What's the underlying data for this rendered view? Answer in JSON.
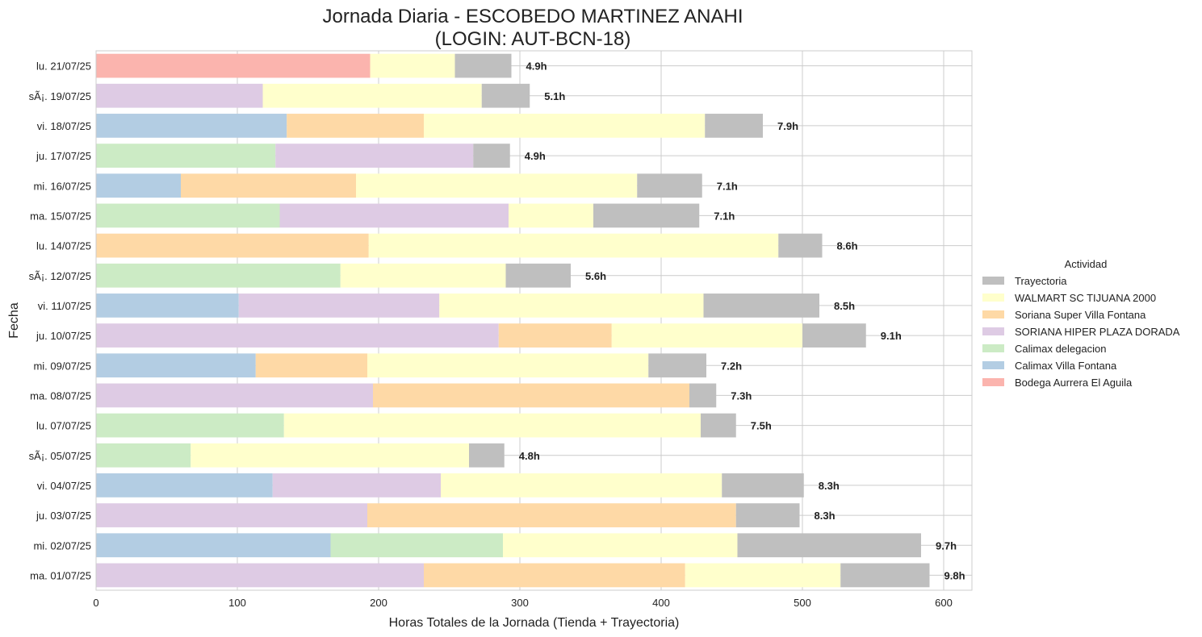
{
  "chart_data": {
    "type": "bar",
    "orientation": "horizontal",
    "stacked": true,
    "title": "Jornada Diaria - ESCOBEDO MARTINEZ ANAHI",
    "subtitle": "(LOGIN: AUT-BCN-18)",
    "xlabel": "Horas Totales de la Jornada (Tienda + Trayectoria)",
    "ylabel": "Fecha",
    "xlim": [
      0,
      620
    ],
    "xticks": [
      0,
      100,
      200,
      300,
      400,
      500,
      600
    ],
    "grid": true,
    "legend_title": "Actividad",
    "legend_position": "right",
    "categories": [
      "lu. 21/07/25",
      "sÃ¡. 19/07/25",
      "vi. 18/07/25",
      "ju. 17/07/25",
      "mi. 16/07/25",
      "ma. 15/07/25",
      "lu. 14/07/25",
      "sÃ¡. 12/07/25",
      "vi. 11/07/25",
      "ju. 10/07/25",
      "mi. 09/07/25",
      "ma. 08/07/25",
      "lu. 07/07/25",
      "sÃ¡. 05/07/25",
      "vi. 04/07/25",
      "ju. 03/07/25",
      "mi. 02/07/25",
      "ma. 01/07/25"
    ],
    "total_labels": [
      "4.9h",
      "5.1h",
      "7.9h",
      "4.9h",
      "7.1h",
      "7.1h",
      "8.6h",
      "5.6h",
      "8.5h",
      "9.1h",
      "7.2h",
      "7.3h",
      "7.5h",
      "4.8h",
      "8.3h",
      "8.3h",
      "9.7h",
      "9.8h"
    ],
    "rows": [
      [
        {
          "name": "Bodega Aurrera El Aguila",
          "value": 194
        },
        {
          "name": "WALMART SC TIJUANA 2000",
          "value": 60
        },
        {
          "name": "Trayectoria",
          "value": 40
        }
      ],
      [
        {
          "name": "SORIANA HIPER PLAZA DORADA",
          "value": 118
        },
        {
          "name": "WALMART SC TIJUANA 2000",
          "value": 155
        },
        {
          "name": "Trayectoria",
          "value": 34
        }
      ],
      [
        {
          "name": "Calimax Villa Fontana",
          "value": 135
        },
        {
          "name": "Soriana Super Villa Fontana",
          "value": 97
        },
        {
          "name": "WALMART SC TIJUANA 2000",
          "value": 199
        },
        {
          "name": "Trayectoria",
          "value": 41
        }
      ],
      [
        {
          "name": "Calimax delegacion",
          "value": 127
        },
        {
          "name": "SORIANA HIPER PLAZA DORADA",
          "value": 140
        },
        {
          "name": "Trayectoria",
          "value": 26
        }
      ],
      [
        {
          "name": "Calimax Villa Fontana",
          "value": 60
        },
        {
          "name": "Soriana Super Villa Fontana",
          "value": 124
        },
        {
          "name": "WALMART SC TIJUANA 2000",
          "value": 199
        },
        {
          "name": "Trayectoria",
          "value": 46
        }
      ],
      [
        {
          "name": "Calimax delegacion",
          "value": 130
        },
        {
          "name": "SORIANA HIPER PLAZA DORADA",
          "value": 162
        },
        {
          "name": "WALMART SC TIJUANA 2000",
          "value": 60
        },
        {
          "name": "Trayectoria",
          "value": 75
        }
      ],
      [
        {
          "name": "Soriana Super Villa Fontana",
          "value": 193
        },
        {
          "name": "WALMART SC TIJUANA 2000",
          "value": 290
        },
        {
          "name": "Trayectoria",
          "value": 31
        }
      ],
      [
        {
          "name": "Calimax delegacion",
          "value": 173
        },
        {
          "name": "WALMART SC TIJUANA 2000",
          "value": 117
        },
        {
          "name": "Trayectoria",
          "value": 46
        }
      ],
      [
        {
          "name": "Calimax Villa Fontana",
          "value": 101
        },
        {
          "name": "SORIANA HIPER PLAZA DORADA",
          "value": 142
        },
        {
          "name": "WALMART SC TIJUANA 2000",
          "value": 187
        },
        {
          "name": "Trayectoria",
          "value": 82
        }
      ],
      [
        {
          "name": "SORIANA HIPER PLAZA DORADA",
          "value": 285
        },
        {
          "name": "Soriana Super Villa Fontana",
          "value": 80
        },
        {
          "name": "WALMART SC TIJUANA 2000",
          "value": 135
        },
        {
          "name": "Trayectoria",
          "value": 45
        }
      ],
      [
        {
          "name": "Calimax Villa Fontana",
          "value": 113
        },
        {
          "name": "Soriana Super Villa Fontana",
          "value": 79
        },
        {
          "name": "WALMART SC TIJUANA 2000",
          "value": 199
        },
        {
          "name": "Trayectoria",
          "value": 41
        }
      ],
      [
        {
          "name": "SORIANA HIPER PLAZA DORADA",
          "value": 196
        },
        {
          "name": "Soriana Super Villa Fontana",
          "value": 224
        },
        {
          "name": "Trayectoria",
          "value": 19
        }
      ],
      [
        {
          "name": "Calimax delegacion",
          "value": 133
        },
        {
          "name": "WALMART SC TIJUANA 2000",
          "value": 295
        },
        {
          "name": "Trayectoria",
          "value": 25
        }
      ],
      [
        {
          "name": "Calimax delegacion",
          "value": 67
        },
        {
          "name": "WALMART SC TIJUANA 2000",
          "value": 197
        },
        {
          "name": "Trayectoria",
          "value": 25
        }
      ],
      [
        {
          "name": "Calimax Villa Fontana",
          "value": 125
        },
        {
          "name": "SORIANA HIPER PLAZA DORADA",
          "value": 119
        },
        {
          "name": "WALMART SC TIJUANA 2000",
          "value": 199
        },
        {
          "name": "Trayectoria",
          "value": 58
        }
      ],
      [
        {
          "name": "SORIANA HIPER PLAZA DORADA",
          "value": 192
        },
        {
          "name": "Soriana Super Villa Fontana",
          "value": 261
        },
        {
          "name": "Trayectoria",
          "value": 45
        }
      ],
      [
        {
          "name": "Calimax Villa Fontana",
          "value": 166
        },
        {
          "name": "Calimax delegacion",
          "value": 122
        },
        {
          "name": "WALMART SC TIJUANA 2000",
          "value": 166
        },
        {
          "name": "Trayectoria",
          "value": 130
        }
      ],
      [
        {
          "name": "SORIANA HIPER PLAZA DORADA",
          "value": 232
        },
        {
          "name": "Soriana Super Villa Fontana",
          "value": 185
        },
        {
          "name": "WALMART SC TIJUANA 2000",
          "value": 110
        },
        {
          "name": "Trayectoria",
          "value": 63
        }
      ]
    ],
    "series": [
      {
        "name": "Trayectoria",
        "color": "#bfbfbf"
      },
      {
        "name": "WALMART SC TIJUANA 2000",
        "color": "#ffffcc"
      },
      {
        "name": "Soriana Super Villa Fontana",
        "color": "#fed9a6"
      },
      {
        "name": "SORIANA HIPER PLAZA DORADA",
        "color": "#decbe4"
      },
      {
        "name": "Calimax delegacion",
        "color": "#ccebc5"
      },
      {
        "name": "Calimax Villa Fontana",
        "color": "#b3cde3"
      },
      {
        "name": "Bodega Aurrera El Aguila",
        "color": "#fbb4ae"
      }
    ]
  }
}
